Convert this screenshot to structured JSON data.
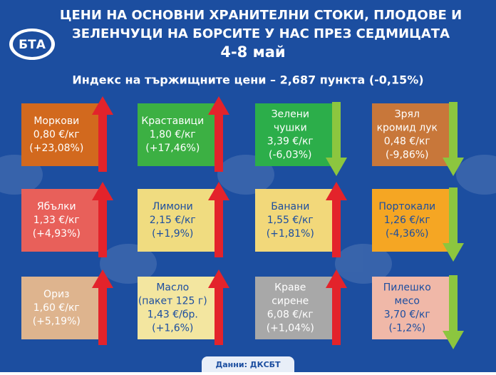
{
  "header": {
    "logo": "БТА",
    "title_lines": [
      "ЦЕНИ НА ОСНОВНИ ХРАНИТЕЛНИ СТОКИ, ПЛОДОВЕ И",
      "ЗЕЛЕНЧУЦИ НА БОРСИТЕ У НАС ПРЕЗ СЕДМИЦАТА"
    ],
    "date": "4-8 май",
    "index": "Индекс на тържищните цени – 2,687 пункта (-0,15%)"
  },
  "tiles": [
    {
      "name": [
        "Моркови"
      ],
      "price": "0,80 €/кг",
      "change": "(+23,08%)"
    },
    {
      "name": [
        "Краставици"
      ],
      "price": "1,80 €/кг",
      "change": "(+17,46%)"
    },
    {
      "name": [
        "Зелени",
        "чушки"
      ],
      "price": "3,39 €/кг",
      "change": "(-6,03%)"
    },
    {
      "name": [
        "Зрял",
        "кромид лук"
      ],
      "price": "0,48 €/кг",
      "change": "(-9,86%)"
    },
    {
      "name": [
        "Ябълки"
      ],
      "price": "1,33 €/кг",
      "change": "(+4,93%)"
    },
    {
      "name": [
        "Лимони"
      ],
      "price": "2,15 €/кг",
      "change": "(+1,9%)"
    },
    {
      "name": [
        "Банани"
      ],
      "price": "1,55 €/кг",
      "change": "(+1,81%)"
    },
    {
      "name": [
        "Портокали"
      ],
      "price": "1,26 €/кг",
      "change": "(-4,36%)"
    },
    {
      "name": [
        "Ориз"
      ],
      "price": "1,60 €/кг",
      "change": "(+5,19%)"
    },
    {
      "name": [
        "Масло",
        "(пакет 125 г)"
      ],
      "price": "1,43 €/бр.",
      "change": "(+1,6%)"
    },
    {
      "name": [
        "Краве",
        "сирене"
      ],
      "price": "6,08 €/кг",
      "change": "(+1,04%)"
    },
    {
      "name": [
        "Пилешко",
        "месо"
      ],
      "price": "3,70 €/кг",
      "change": "(-1,2%)"
    }
  ],
  "source": "Данни: ДКСБТ"
}
